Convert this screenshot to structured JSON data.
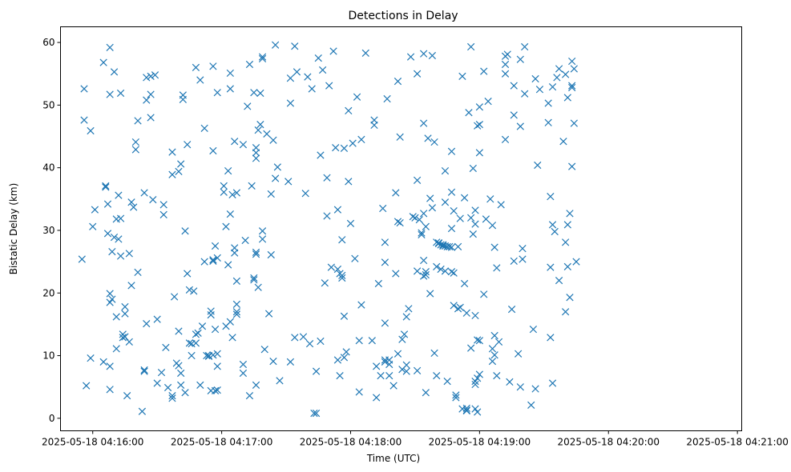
{
  "chart_data": {
    "type": "scatter",
    "title": "Detections in Delay",
    "xlabel": "Time (UTC)",
    "ylabel": "Bistatic Delay (km)",
    "x_unit": "seconds after 2025-05-18 04:16:00 UTC",
    "xlim": [
      -15,
      302
    ],
    "ylim": [
      -2,
      62.5
    ],
    "x_ticks": [
      {
        "value": 0,
        "label": "2025-05-18 04:16:00"
      },
      {
        "value": 60,
        "label": "2025-05-18 04:17:00"
      },
      {
        "value": 120,
        "label": "2025-05-18 04:18:00"
      },
      {
        "value": 180,
        "label": "2025-05-18 04:19:00"
      },
      {
        "value": 240,
        "label": "2025-05-18 04:20:00"
      },
      {
        "value": 300,
        "label": "2025-05-18 04:21:00"
      }
    ],
    "y_ticks": [
      {
        "value": 0,
        "label": "0"
      },
      {
        "value": 10,
        "label": "10"
      },
      {
        "value": 20,
        "label": "20"
      },
      {
        "value": 30,
        "label": "30"
      },
      {
        "value": 40,
        "label": "40"
      },
      {
        "value": 50,
        "label": "50"
      },
      {
        "value": 60,
        "label": "60"
      }
    ],
    "grid": false,
    "marker": "x",
    "color": "#1f77b4",
    "points": [
      [
        -5,
        25.4
      ],
      [
        -4,
        52.6
      ],
      [
        -4,
        47.6
      ],
      [
        -3,
        5.2
      ],
      [
        -1,
        45.9
      ],
      [
        -1,
        9.6
      ],
      [
        0,
        30.6
      ],
      [
        1,
        33.3
      ],
      [
        5,
        56.8
      ],
      [
        5,
        9.0
      ],
      [
        6,
        36.9
      ],
      [
        6,
        37.1
      ],
      [
        7,
        29.5
      ],
      [
        7,
        34.2
      ],
      [
        8,
        59.2
      ],
      [
        8,
        4.6
      ],
      [
        8,
        8.3
      ],
      [
        8,
        51.7
      ],
      [
        8,
        19.9
      ],
      [
        8,
        18.5
      ],
      [
        9,
        19.0
      ],
      [
        9,
        26.6
      ],
      [
        10,
        55.3
      ],
      [
        10,
        28.9
      ],
      [
        11,
        31.8
      ],
      [
        11,
        11.1
      ],
      [
        11,
        16.2
      ],
      [
        12,
        35.6
      ],
      [
        12,
        28.6
      ],
      [
        13,
        25.9
      ],
      [
        13,
        51.9
      ],
      [
        13,
        31.9
      ],
      [
        14,
        13.4
      ],
      [
        14,
        12.9
      ],
      [
        15,
        17.8
      ],
      [
        15,
        13.0
      ],
      [
        15,
        16.7
      ],
      [
        16,
        3.6
      ],
      [
        17,
        26.3
      ],
      [
        17,
        12.2
      ],
      [
        18,
        34.5
      ],
      [
        18,
        21.2
      ],
      [
        19,
        33.7
      ],
      [
        20,
        44.1
      ],
      [
        20,
        42.9
      ],
      [
        21,
        47.5
      ],
      [
        21,
        23.3
      ],
      [
        23,
        1.1
      ],
      [
        24,
        7.7
      ],
      [
        24,
        7.5
      ],
      [
        24,
        36.0
      ],
      [
        25,
        54.4
      ],
      [
        25,
        50.8
      ],
      [
        25,
        15.1
      ],
      [
        27,
        54.6
      ],
      [
        27,
        51.7
      ],
      [
        27,
        48.0
      ],
      [
        28,
        34.9
      ],
      [
        29,
        54.8
      ],
      [
        30,
        5.6
      ],
      [
        30,
        15.8
      ],
      [
        32,
        7.3
      ],
      [
        33,
        32.5
      ],
      [
        33,
        34.1
      ],
      [
        34,
        11.3
      ],
      [
        35,
        4.9
      ],
      [
        37,
        3.6
      ],
      [
        37,
        3.2
      ],
      [
        37,
        42.5
      ],
      [
        37,
        38.9
      ],
      [
        38,
        19.4
      ],
      [
        39,
        8.8
      ],
      [
        40,
        13.9
      ],
      [
        40,
        39.4
      ],
      [
        40,
        8.4
      ],
      [
        41,
        40.6
      ],
      [
        41,
        7.2
      ],
      [
        41,
        5.3
      ],
      [
        42,
        50.9
      ],
      [
        42,
        51.6
      ],
      [
        43,
        4.1
      ],
      [
        43,
        29.9
      ],
      [
        44,
        23.1
      ],
      [
        44,
        43.7
      ],
      [
        45,
        20.5
      ],
      [
        45,
        12.0
      ],
      [
        46,
        10.0
      ],
      [
        46,
        11.9
      ],
      [
        47,
        20.3
      ],
      [
        48,
        13.4
      ],
      [
        48,
        12.0
      ],
      [
        48,
        56.0
      ],
      [
        49,
        13.6
      ],
      [
        50,
        54.0
      ],
      [
        50,
        5.3
      ],
      [
        51,
        14.7
      ],
      [
        52,
        46.3
      ],
      [
        52,
        25.0
      ],
      [
        53,
        10.0
      ],
      [
        54,
        10.0
      ],
      [
        54,
        9.9
      ],
      [
        55,
        16.5
      ],
      [
        55,
        17.1
      ],
      [
        55,
        4.4
      ],
      [
        56,
        56.2
      ],
      [
        56,
        42.7
      ],
      [
        56,
        10.1
      ],
      [
        56,
        25.1
      ],
      [
        56,
        25.3
      ],
      [
        57,
        27.5
      ],
      [
        57,
        14.2
      ],
      [
        57,
        4.4
      ],
      [
        58,
        52.0
      ],
      [
        58,
        4.5
      ],
      [
        58,
        10.3
      ],
      [
        58,
        25.6
      ],
      [
        58,
        8.3
      ],
      [
        61,
        37.1
      ],
      [
        61,
        36.1
      ],
      [
        62,
        14.7
      ],
      [
        62,
        30.6
      ],
      [
        63,
        39.5
      ],
      [
        63,
        24.5
      ],
      [
        64,
        55.1
      ],
      [
        64,
        15.4
      ],
      [
        64,
        52.6
      ],
      [
        64,
        32.6
      ],
      [
        65,
        12.9
      ],
      [
        65,
        35.7
      ],
      [
        66,
        44.2
      ],
      [
        66,
        27.2
      ],
      [
        66,
        26.4
      ],
      [
        67,
        17.0
      ],
      [
        67,
        18.2
      ],
      [
        67,
        36.0
      ],
      [
        67,
        21.9
      ],
      [
        67,
        16.6
      ],
      [
        70,
        43.7
      ],
      [
        70,
        8.6
      ],
      [
        70,
        7.2
      ],
      [
        71,
        28.4
      ],
      [
        72,
        49.8
      ],
      [
        73,
        56.5
      ],
      [
        73,
        3.6
      ],
      [
        74,
        37.1
      ],
      [
        75,
        52.0
      ],
      [
        75,
        22.1
      ],
      [
        75,
        22.4
      ],
      [
        76,
        5.3
      ],
      [
        76,
        43.2
      ],
      [
        76,
        42.4
      ],
      [
        76,
        41.5
      ],
      [
        76,
        26.2
      ],
      [
        76,
        26.5
      ],
      [
        77,
        46.0
      ],
      [
        77,
        20.9
      ],
      [
        78,
        46.9
      ],
      [
        78,
        51.9
      ],
      [
        79,
        57.4
      ],
      [
        79,
        57.7
      ],
      [
        79,
        29.9
      ],
      [
        79,
        28.6
      ],
      [
        80,
        11.0
      ],
      [
        81,
        45.4
      ],
      [
        82,
        16.7
      ],
      [
        83,
        35.8
      ],
      [
        83,
        26.1
      ],
      [
        84,
        44.4
      ],
      [
        84,
        9.1
      ],
      [
        85,
        38.3
      ],
      [
        85,
        59.6
      ],
      [
        86,
        40.1
      ],
      [
        87,
        6.0
      ],
      [
        91,
        37.8
      ],
      [
        92,
        54.3
      ],
      [
        92,
        50.3
      ],
      [
        92,
        9.0
      ],
      [
        94,
        59.4
      ],
      [
        94,
        12.9
      ],
      [
        95,
        55.3
      ],
      [
        98,
        13.0
      ],
      [
        99,
        35.9
      ],
      [
        100,
        54.5
      ],
      [
        101,
        11.9
      ],
      [
        102,
        52.6
      ],
      [
        103,
        0.8
      ],
      [
        104,
        0.8
      ],
      [
        104,
        7.5
      ],
      [
        105,
        57.5
      ],
      [
        106,
        42.0
      ],
      [
        106,
        12.3
      ],
      [
        107,
        55.6
      ],
      [
        108,
        21.6
      ],
      [
        109,
        32.3
      ],
      [
        109,
        38.4
      ],
      [
        110,
        53.1
      ],
      [
        111,
        24.1
      ],
      [
        112,
        58.6
      ],
      [
        113,
        43.2
      ],
      [
        114,
        33.3
      ],
      [
        114,
        23.8
      ],
      [
        114,
        9.3
      ],
      [
        115,
        6.8
      ],
      [
        115,
        23.1
      ],
      [
        116,
        28.5
      ],
      [
        116,
        22.4
      ],
      [
        116,
        22.8
      ],
      [
        117,
        43.1
      ],
      [
        117,
        9.7
      ],
      [
        117,
        16.3
      ],
      [
        118,
        10.6
      ],
      [
        119,
        49.1
      ],
      [
        119,
        37.8
      ],
      [
        120,
        31.1
      ],
      [
        121,
        43.9
      ],
      [
        122,
        25.5
      ],
      [
        123,
        51.3
      ],
      [
        124,
        12.4
      ],
      [
        124,
        4.2
      ],
      [
        125,
        44.5
      ],
      [
        125,
        18.1
      ],
      [
        127,
        58.3
      ],
      [
        130,
        12.4
      ],
      [
        131,
        47.6
      ],
      [
        131,
        46.8
      ],
      [
        132,
        3.3
      ],
      [
        132,
        8.3
      ],
      [
        133,
        21.5
      ],
      [
        134,
        6.8
      ],
      [
        135,
        33.5
      ],
      [
        136,
        24.9
      ],
      [
        136,
        28.1
      ],
      [
        136,
        15.2
      ],
      [
        136,
        9.0
      ],
      [
        136,
        9.3
      ],
      [
        137,
        51.0
      ],
      [
        138,
        8.6
      ],
      [
        138,
        9.3
      ],
      [
        138,
        6.8
      ],
      [
        140,
        5.2
      ],
      [
        141,
        36.0
      ],
      [
        141,
        23.1
      ],
      [
        142,
        10.3
      ],
      [
        142,
        53.8
      ],
      [
        142,
        31.4
      ],
      [
        143,
        31.2
      ],
      [
        143,
        44.9
      ],
      [
        144,
        7.8
      ],
      [
        144,
        12.6
      ],
      [
        145,
        13.4
      ],
      [
        146,
        8.5
      ],
      [
        146,
        7.5
      ],
      [
        146,
        16.2
      ],
      [
        147,
        17.5
      ],
      [
        148,
        57.7
      ],
      [
        149,
        32.2
      ],
      [
        150,
        32.0
      ],
      [
        151,
        55.0
      ],
      [
        151,
        38.0
      ],
      [
        151,
        23.5
      ],
      [
        151,
        7.6
      ],
      [
        152,
        31.7
      ],
      [
        153,
        29.3
      ],
      [
        153,
        29.6
      ],
      [
        154,
        47.1
      ],
      [
        154,
        58.2
      ],
      [
        154,
        32.7
      ],
      [
        154,
        25.2
      ],
      [
        154,
        22.7
      ],
      [
        155,
        22.9
      ],
      [
        155,
        30.6
      ],
      [
        155,
        23.4
      ],
      [
        155,
        4.1
      ],
      [
        156,
        44.7
      ],
      [
        157,
        35.1
      ],
      [
        157,
        19.9
      ],
      [
        158,
        57.9
      ],
      [
        158,
        33.6
      ],
      [
        159,
        10.4
      ],
      [
        159,
        44.1
      ],
      [
        160,
        6.8
      ],
      [
        160,
        24.2
      ],
      [
        160,
        28.1
      ],
      [
        161,
        28.0
      ],
      [
        161,
        27.9
      ],
      [
        162,
        27.7
      ],
      [
        162,
        23.8
      ],
      [
        163,
        27.7
      ],
      [
        163,
        27.5
      ],
      [
        164,
        27.5
      ],
      [
        164,
        39.5
      ],
      [
        164,
        34.5
      ],
      [
        164,
        23.5
      ],
      [
        165,
        27.4
      ],
      [
        165,
        5.9
      ],
      [
        166,
        27.4
      ],
      [
        167,
        27.3
      ],
      [
        167,
        36.1
      ],
      [
        167,
        30.3
      ],
      [
        167,
        23.4
      ],
      [
        167,
        42.6
      ],
      [
        168,
        18.0
      ],
      [
        168,
        33.1
      ],
      [
        168,
        23.2
      ],
      [
        169,
        3.7
      ],
      [
        169,
        3.3
      ],
      [
        170,
        27.4
      ],
      [
        170,
        17.5
      ],
      [
        171,
        31.9
      ],
      [
        171,
        17.7
      ],
      [
        172,
        1.5
      ],
      [
        172,
        54.6
      ],
      [
        173,
        35.2
      ],
      [
        173,
        21.5
      ],
      [
        174,
        1.2
      ],
      [
        174,
        1.6
      ],
      [
        174,
        16.8
      ],
      [
        174,
        1.3
      ],
      [
        175,
        48.8
      ],
      [
        176,
        59.3
      ],
      [
        176,
        32.0
      ],
      [
        176,
        11.2
      ],
      [
        177,
        29.4
      ],
      [
        177,
        39.9
      ],
      [
        178,
        33.2
      ],
      [
        178,
        31.0
      ],
      [
        178,
        16.4
      ],
      [
        178,
        1.5
      ],
      [
        178,
        5.4
      ],
      [
        178,
        5.9
      ],
      [
        179,
        46.7
      ],
      [
        179,
        12.5
      ],
      [
        179,
        1.0
      ],
      [
        179,
        6.4
      ],
      [
        180,
        12.4
      ],
      [
        180,
        46.9
      ],
      [
        180,
        49.7
      ],
      [
        180,
        42.4
      ],
      [
        180,
        7.0
      ],
      [
        182,
        55.4
      ],
      [
        182,
        19.8
      ],
      [
        183,
        31.8
      ],
      [
        184,
        50.6
      ],
      [
        185,
        35.0
      ],
      [
        186,
        30.8
      ],
      [
        186,
        11.1
      ],
      [
        186,
        9.1
      ],
      [
        187,
        27.3
      ],
      [
        187,
        10.1
      ],
      [
        187,
        13.2
      ],
      [
        188,
        24.0
      ],
      [
        188,
        6.8
      ],
      [
        189,
        12.2
      ],
      [
        190,
        34.1
      ],
      [
        192,
        44.5
      ],
      [
        192,
        56.5
      ],
      [
        192,
        55.0
      ],
      [
        192,
        57.8
      ],
      [
        193,
        58.1
      ],
      [
        194,
        5.8
      ],
      [
        195,
        17.4
      ],
      [
        196,
        48.4
      ],
      [
        196,
        25.1
      ],
      [
        196,
        53.1
      ],
      [
        198,
        10.3
      ],
      [
        199,
        46.6
      ],
      [
        199,
        57.3
      ],
      [
        199,
        5.0
      ],
      [
        200,
        27.1
      ],
      [
        200,
        25.4
      ],
      [
        201,
        59.3
      ],
      [
        201,
        51.8
      ],
      [
        204,
        2.1
      ],
      [
        205,
        14.2
      ],
      [
        206,
        54.2
      ],
      [
        206,
        4.7
      ],
      [
        207,
        40.4
      ],
      [
        208,
        52.5
      ],
      [
        212,
        47.2
      ],
      [
        212,
        50.3
      ],
      [
        213,
        35.4
      ],
      [
        213,
        24.1
      ],
      [
        213,
        12.9
      ],
      [
        214,
        52.9
      ],
      [
        214,
        5.6
      ],
      [
        214,
        30.9
      ],
      [
        215,
        29.8
      ],
      [
        216,
        54.4
      ],
      [
        217,
        22.0
      ],
      [
        217,
        55.8
      ],
      [
        219,
        44.2
      ],
      [
        220,
        54.9
      ],
      [
        220,
        28.1
      ],
      [
        220,
        17.0
      ],
      [
        221,
        24.2
      ],
      [
        221,
        51.2
      ],
      [
        221,
        30.9
      ],
      [
        222,
        32.7
      ],
      [
        222,
        19.3
      ],
      [
        223,
        53.1
      ],
      [
        223,
        52.8
      ],
      [
        223,
        40.2
      ],
      [
        223,
        57.0
      ],
      [
        224,
        55.8
      ],
      [
        224,
        47.1
      ],
      [
        225,
        25.0
      ]
    ]
  }
}
